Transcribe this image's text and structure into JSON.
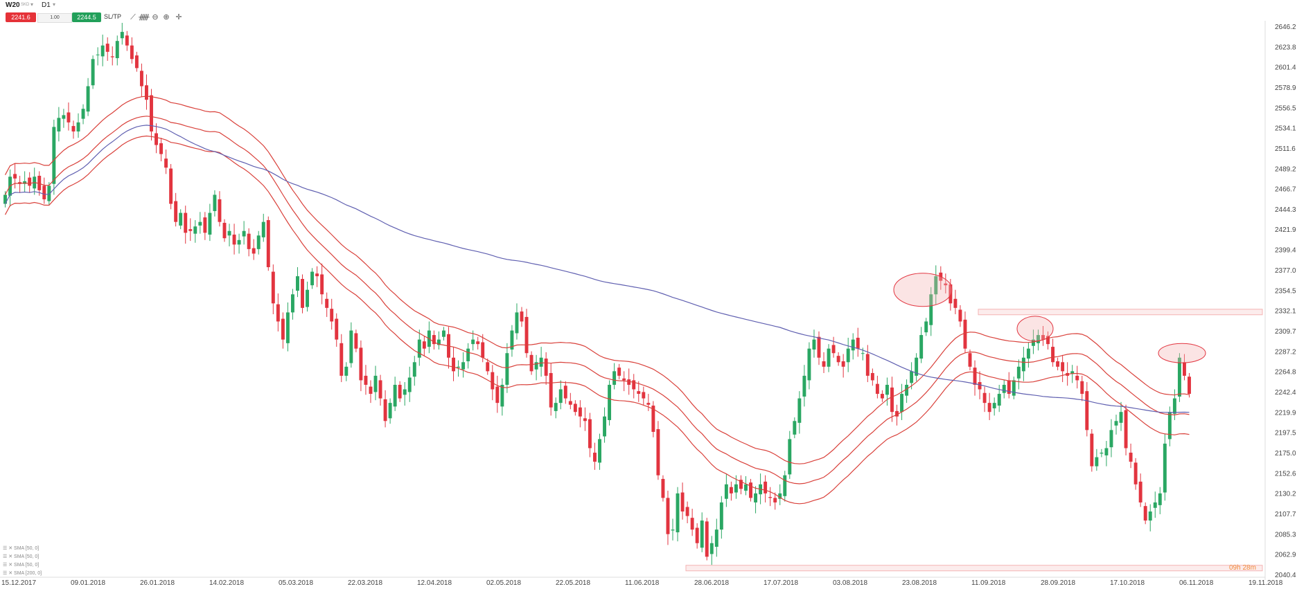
{
  "symbol": "W20",
  "symbol_sub": "SKD",
  "timeframe": "D1",
  "trade": {
    "sell_price": "2241.6",
    "volume": "1.00",
    "buy_price": "2244.5",
    "sltp_label": "SL/TP"
  },
  "tools": [
    "line-chart-icon",
    "indicators-icon",
    "zoom-out-icon",
    "zoom-in-icon",
    "crosshair-icon"
  ],
  "indicators": [
    "SMA [50, 0]",
    "SMA [50, 0]",
    "SMA [50, 0]",
    "SMA [200, 0]"
  ],
  "countdown": "09h 28m",
  "colors": {
    "up": "#2aa763",
    "down": "#e2343f",
    "sma50": "#d9403a",
    "sma200": "#5f5fb0",
    "zone": "#f4b3b3"
  },
  "chart_data": {
    "type": "candlestick",
    "y_ticks": [
      2646.2,
      2623.8,
      2601.4,
      2578.9,
      2556.5,
      2534.1,
      2511.6,
      2489.2,
      2466.7,
      2444.3,
      2421.9,
      2399.4,
      2377.0,
      2354.5,
      2332.1,
      2309.7,
      2287.2,
      2264.8,
      2242.4,
      2219.9,
      2197.5,
      2175.0,
      2152.6,
      2130.2,
      2107.7,
      2085.3,
      2062.9,
      2040.4
    ],
    "x_ticks": [
      "15.12.2017",
      "09.01.2018",
      "26.01.2018",
      "14.02.2018",
      "05.03.2018",
      "22.03.2018",
      "12.04.2018",
      "02.05.2018",
      "22.05.2018",
      "11.06.2018",
      "28.06.2018",
      "17.07.2018",
      "03.08.2018",
      "23.08.2018",
      "11.09.2018",
      "28.09.2018",
      "17.10.2018",
      "06.11.2018",
      "19.11.2018"
    ],
    "ylim": [
      2040.4,
      2646.2
    ],
    "closes": [
      2460,
      2480,
      2478,
      2472,
      2475,
      2470,
      2480,
      2465,
      2455,
      2470,
      2535,
      2545,
      2548,
      2540,
      2530,
      2540,
      2555,
      2580,
      2610,
      2615,
      2625,
      2618,
      2612,
      2630,
      2640,
      2625,
      2610,
      2600,
      2580,
      2565,
      2530,
      2515,
      2505,
      2490,
      2450,
      2430,
      2440,
      2418,
      2420,
      2425,
      2430,
      2418,
      2440,
      2460,
      2430,
      2412,
      2420,
      2405,
      2410,
      2420,
      2400,
      2395,
      2415,
      2430,
      2380,
      2340,
      2320,
      2300,
      2330,
      2350,
      2370,
      2335,
      2355,
      2375,
      2370,
      2350,
      2335,
      2320,
      2300,
      2260,
      2270,
      2310,
      2290,
      2255,
      2250,
      2240,
      2260,
      2235,
      2210,
      2230,
      2250,
      2235,
      2245,
      2258,
      2275,
      2300,
      2290,
      2310,
      2295,
      2300,
      2310,
      2280,
      2265,
      2270,
      2275,
      2290,
      2300,
      2295,
      2280,
      2265,
      2245,
      2230,
      2250,
      2285,
      2310,
      2330,
      2320,
      2285,
      2265,
      2275,
      2280,
      2260,
      2225,
      2230,
      2245,
      2235,
      2228,
      2220,
      2215,
      2210,
      2180,
      2165,
      2190,
      2215,
      2250,
      2265,
      2260,
      2255,
      2250,
      2245,
      2240,
      2235,
      2228,
      2198,
      2150,
      2125,
      2085,
      2090,
      2130,
      2110,
      2105,
      2090,
      2075,
      2100,
      2060,
      2075,
      2090,
      2120,
      2140,
      2130,
      2140,
      2135,
      2140,
      2125,
      2130,
      2140,
      2130,
      2125,
      2120,
      2130,
      2150,
      2190,
      2210,
      2235,
      2260,
      2290,
      2300,
      2280,
      2270,
      2290,
      2285,
      2275,
      2270,
      2290,
      2300,
      2290,
      2285,
      2260,
      2255,
      2240,
      2235,
      2250,
      2220,
      2215,
      2240,
      2250,
      2265,
      2280,
      2305,
      2320,
      2350,
      2370,
      2365,
      2360,
      2340,
      2335,
      2320,
      2290,
      2270,
      2250,
      2245,
      2230,
      2220,
      2230,
      2240,
      2250,
      2240,
      2255,
      2270,
      2280,
      2290,
      2300,
      2305,
      2300,
      2295,
      2275,
      2270,
      2265,
      2260,
      2265,
      2255,
      2240,
      2200,
      2160,
      2170,
      2175,
      2180,
      2200,
      2210,
      2220,
      2180,
      2165,
      2140,
      2120,
      2100,
      2110,
      2120,
      2130,
      2185,
      2220,
      2235,
      2280,
      2260,
      2240
    ]
  }
}
